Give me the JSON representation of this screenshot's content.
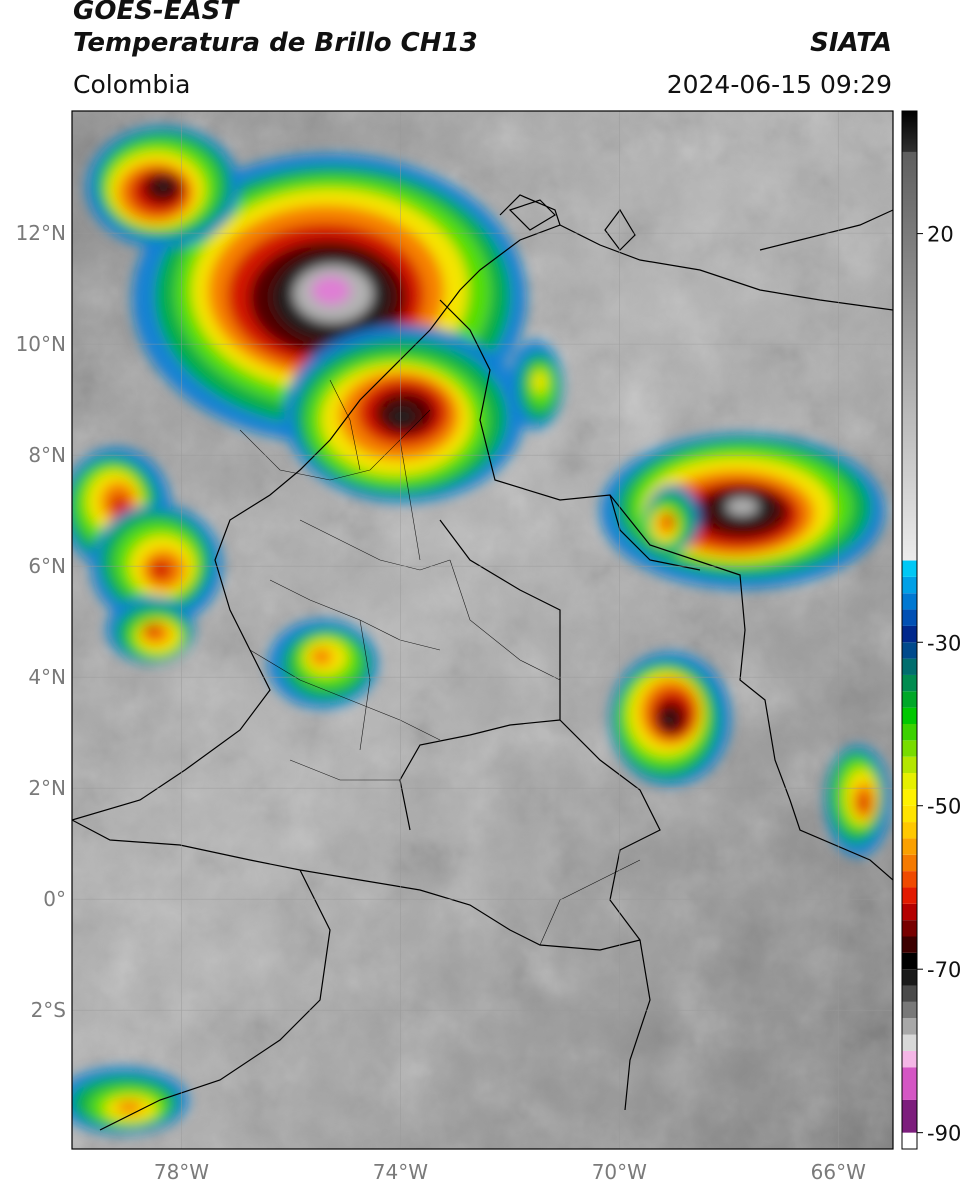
{
  "header": {
    "satellite": "GOES-EAST",
    "product": "Temperatura de Brillo CH13",
    "organization": "SIATA",
    "region": "Colombia",
    "datetime": "2024-06-15 09:29"
  },
  "map": {
    "lon_range": [
      -80,
      -65
    ],
    "lat_range": [
      -4.5,
      14.2
    ],
    "lat_ticks": [
      {
        "value": 12,
        "label": "12°N"
      },
      {
        "value": 10,
        "label": "10°N"
      },
      {
        "value": 8,
        "label": "8°N"
      },
      {
        "value": 6,
        "label": "6°N"
      },
      {
        "value": 4,
        "label": "4°N"
      },
      {
        "value": 2,
        "label": "2°N"
      },
      {
        "value": 0,
        "label": "0°"
      },
      {
        "value": -2,
        "label": "2°S"
      }
    ],
    "lon_ticks": [
      {
        "value": -78,
        "label": "78°W"
      },
      {
        "value": -74,
        "label": "74°W"
      },
      {
        "value": -70,
        "label": "70°W"
      },
      {
        "value": -66,
        "label": "66°W"
      }
    ],
    "storms": [
      {
        "lon": -75.3,
        "lat": 10.9,
        "rx": 3.6,
        "ry": 2.6,
        "intensity": 1.0
      },
      {
        "lon": -78.4,
        "lat": 12.8,
        "rx": 1.4,
        "ry": 1.1,
        "intensity": 0.8
      },
      {
        "lon": -74.0,
        "lat": 8.7,
        "rx": 2.2,
        "ry": 1.6,
        "intensity": 0.75
      },
      {
        "lon": -79.2,
        "lat": 7.1,
        "rx": 1.0,
        "ry": 1.1,
        "intensity": 0.6
      },
      {
        "lon": -78.4,
        "lat": 6.0,
        "rx": 1.2,
        "ry": 1.1,
        "intensity": 0.6
      },
      {
        "lon": -78.5,
        "lat": 4.8,
        "rx": 0.8,
        "ry": 0.6,
        "intensity": 0.55
      },
      {
        "lon": -75.4,
        "lat": 4.3,
        "rx": 1.0,
        "ry": 0.8,
        "intensity": 0.45
      },
      {
        "lon": -67.8,
        "lat": 7.0,
        "rx": 2.6,
        "ry": 1.4,
        "intensity": 0.9
      },
      {
        "lon": -69.1,
        "lat": 6.8,
        "rx": 0.5,
        "ry": 0.6,
        "intensity": 0.6
      },
      {
        "lon": -69.1,
        "lat": 3.3,
        "rx": 1.1,
        "ry": 1.2,
        "intensity": 0.75
      },
      {
        "lon": -65.6,
        "lat": 1.8,
        "rx": 0.6,
        "ry": 1.0,
        "intensity": 0.6
      },
      {
        "lon": -79.0,
        "lat": -3.7,
        "rx": 1.2,
        "ry": 0.6,
        "intensity": 0.45
      },
      {
        "lon": -71.5,
        "lat": 9.3,
        "rx": 0.5,
        "ry": 0.8,
        "intensity": 0.4
      }
    ]
  },
  "colorbar": {
    "ticks": [
      {
        "value": 20,
        "label": "20"
      },
      {
        "value": -30,
        "label": "-30"
      },
      {
        "value": -50,
        "label": "-50"
      },
      {
        "value": -70,
        "label": "-70"
      },
      {
        "value": -90,
        "label": "-90"
      }
    ],
    "range": [
      -92,
      35
    ],
    "segments": [
      {
        "from": -92,
        "to": -90,
        "color": "#ffffff"
      },
      {
        "from": -90,
        "to": -86,
        "color": "#7d1e7d"
      },
      {
        "from": -86,
        "to": -82,
        "color": "#d456c4"
      },
      {
        "from": -82,
        "to": -80,
        "color": "#f4b6e6"
      },
      {
        "from": -80,
        "to": -78,
        "color": "#d8d8d8"
      },
      {
        "from": -78,
        "to": -76,
        "color": "#a8a8a8"
      },
      {
        "from": -76,
        "to": -74,
        "color": "#787878"
      },
      {
        "from": -74,
        "to": -72,
        "color": "#4a4a4a"
      },
      {
        "from": -72,
        "to": -70,
        "color": "#1a1a1a"
      },
      {
        "from": -70,
        "to": -68,
        "color": "#000000"
      },
      {
        "from": -68,
        "to": -66,
        "color": "#3c0000"
      },
      {
        "from": -66,
        "to": -64,
        "color": "#780000"
      },
      {
        "from": -64,
        "to": -62,
        "color": "#b40000"
      },
      {
        "from": -62,
        "to": -60,
        "color": "#e31a00"
      },
      {
        "from": -60,
        "to": -58,
        "color": "#f04a00"
      },
      {
        "from": -58,
        "to": -56,
        "color": "#f57a00"
      },
      {
        "from": -56,
        "to": -54,
        "color": "#faa000"
      },
      {
        "from": -54,
        "to": -52,
        "color": "#ffc800"
      },
      {
        "from": -52,
        "to": -50,
        "color": "#ffe400"
      },
      {
        "from": -50,
        "to": -48,
        "color": "#fff200"
      },
      {
        "from": -48,
        "to": -46,
        "color": "#e6f000"
      },
      {
        "from": -46,
        "to": -44,
        "color": "#b4e600"
      },
      {
        "from": -44,
        "to": -42,
        "color": "#78dc00"
      },
      {
        "from": -42,
        "to": -40,
        "color": "#3cd200"
      },
      {
        "from": -40,
        "to": -38,
        "color": "#00c800"
      },
      {
        "from": -38,
        "to": -36,
        "color": "#00a828"
      },
      {
        "from": -36,
        "to": -34,
        "color": "#008c50"
      },
      {
        "from": -34,
        "to": -32,
        "color": "#006e6e"
      },
      {
        "from": -32,
        "to": -30,
        "color": "#004a8c"
      },
      {
        "from": -30,
        "to": -28,
        "color": "#00288c"
      },
      {
        "from": -28,
        "to": -26,
        "color": "#0050b4"
      },
      {
        "from": -26,
        "to": -24,
        "color": "#0078d2"
      },
      {
        "from": -24,
        "to": -22,
        "color": "#00a0e6"
      },
      {
        "from": -22,
        "to": -20,
        "color": "#00c8f5"
      },
      {
        "from": -20,
        "to": 35,
        "gradient": [
          "#ececec",
          "#505050"
        ]
      },
      {
        "from": 30,
        "to": 35,
        "gradient": [
          "#303030",
          "#000000"
        ]
      }
    ]
  }
}
